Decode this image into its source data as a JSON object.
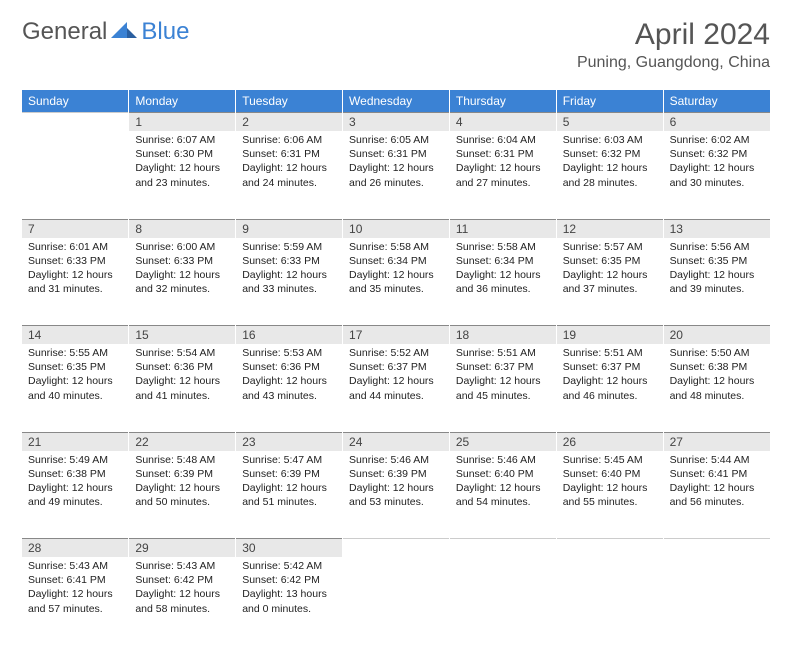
{
  "brand": {
    "part1": "General",
    "part2": "Blue"
  },
  "title": "April 2024",
  "location": "Puning, Guangdong, China",
  "colors": {
    "header_bg": "#3b82d4",
    "header_text": "#ffffff",
    "daynum_bg": "#e8e8e8",
    "daynum_border": "#888888",
    "body_text": "#222222",
    "title_text": "#555555"
  },
  "weekdays": [
    "Sunday",
    "Monday",
    "Tuesday",
    "Wednesday",
    "Thursday",
    "Friday",
    "Saturday"
  ],
  "weeks": [
    {
      "nums": [
        "",
        "1",
        "2",
        "3",
        "4",
        "5",
        "6"
      ],
      "cells": [
        null,
        {
          "sunrise": "Sunrise: 6:07 AM",
          "sunset": "Sunset: 6:30 PM",
          "day1": "Daylight: 12 hours",
          "day2": "and 23 minutes."
        },
        {
          "sunrise": "Sunrise: 6:06 AM",
          "sunset": "Sunset: 6:31 PM",
          "day1": "Daylight: 12 hours",
          "day2": "and 24 minutes."
        },
        {
          "sunrise": "Sunrise: 6:05 AM",
          "sunset": "Sunset: 6:31 PM",
          "day1": "Daylight: 12 hours",
          "day2": "and 26 minutes."
        },
        {
          "sunrise": "Sunrise: 6:04 AM",
          "sunset": "Sunset: 6:31 PM",
          "day1": "Daylight: 12 hours",
          "day2": "and 27 minutes."
        },
        {
          "sunrise": "Sunrise: 6:03 AM",
          "sunset": "Sunset: 6:32 PM",
          "day1": "Daylight: 12 hours",
          "day2": "and 28 minutes."
        },
        {
          "sunrise": "Sunrise: 6:02 AM",
          "sunset": "Sunset: 6:32 PM",
          "day1": "Daylight: 12 hours",
          "day2": "and 30 minutes."
        }
      ]
    },
    {
      "nums": [
        "7",
        "8",
        "9",
        "10",
        "11",
        "12",
        "13"
      ],
      "cells": [
        {
          "sunrise": "Sunrise: 6:01 AM",
          "sunset": "Sunset: 6:33 PM",
          "day1": "Daylight: 12 hours",
          "day2": "and 31 minutes."
        },
        {
          "sunrise": "Sunrise: 6:00 AM",
          "sunset": "Sunset: 6:33 PM",
          "day1": "Daylight: 12 hours",
          "day2": "and 32 minutes."
        },
        {
          "sunrise": "Sunrise: 5:59 AM",
          "sunset": "Sunset: 6:33 PM",
          "day1": "Daylight: 12 hours",
          "day2": "and 33 minutes."
        },
        {
          "sunrise": "Sunrise: 5:58 AM",
          "sunset": "Sunset: 6:34 PM",
          "day1": "Daylight: 12 hours",
          "day2": "and 35 minutes."
        },
        {
          "sunrise": "Sunrise: 5:58 AM",
          "sunset": "Sunset: 6:34 PM",
          "day1": "Daylight: 12 hours",
          "day2": "and 36 minutes."
        },
        {
          "sunrise": "Sunrise: 5:57 AM",
          "sunset": "Sunset: 6:35 PM",
          "day1": "Daylight: 12 hours",
          "day2": "and 37 minutes."
        },
        {
          "sunrise": "Sunrise: 5:56 AM",
          "sunset": "Sunset: 6:35 PM",
          "day1": "Daylight: 12 hours",
          "day2": "and 39 minutes."
        }
      ]
    },
    {
      "nums": [
        "14",
        "15",
        "16",
        "17",
        "18",
        "19",
        "20"
      ],
      "cells": [
        {
          "sunrise": "Sunrise: 5:55 AM",
          "sunset": "Sunset: 6:35 PM",
          "day1": "Daylight: 12 hours",
          "day2": "and 40 minutes."
        },
        {
          "sunrise": "Sunrise: 5:54 AM",
          "sunset": "Sunset: 6:36 PM",
          "day1": "Daylight: 12 hours",
          "day2": "and 41 minutes."
        },
        {
          "sunrise": "Sunrise: 5:53 AM",
          "sunset": "Sunset: 6:36 PM",
          "day1": "Daylight: 12 hours",
          "day2": "and 43 minutes."
        },
        {
          "sunrise": "Sunrise: 5:52 AM",
          "sunset": "Sunset: 6:37 PM",
          "day1": "Daylight: 12 hours",
          "day2": "and 44 minutes."
        },
        {
          "sunrise": "Sunrise: 5:51 AM",
          "sunset": "Sunset: 6:37 PM",
          "day1": "Daylight: 12 hours",
          "day2": "and 45 minutes."
        },
        {
          "sunrise": "Sunrise: 5:51 AM",
          "sunset": "Sunset: 6:37 PM",
          "day1": "Daylight: 12 hours",
          "day2": "and 46 minutes."
        },
        {
          "sunrise": "Sunrise: 5:50 AM",
          "sunset": "Sunset: 6:38 PM",
          "day1": "Daylight: 12 hours",
          "day2": "and 48 minutes."
        }
      ]
    },
    {
      "nums": [
        "21",
        "22",
        "23",
        "24",
        "25",
        "26",
        "27"
      ],
      "cells": [
        {
          "sunrise": "Sunrise: 5:49 AM",
          "sunset": "Sunset: 6:38 PM",
          "day1": "Daylight: 12 hours",
          "day2": "and 49 minutes."
        },
        {
          "sunrise": "Sunrise: 5:48 AM",
          "sunset": "Sunset: 6:39 PM",
          "day1": "Daylight: 12 hours",
          "day2": "and 50 minutes."
        },
        {
          "sunrise": "Sunrise: 5:47 AM",
          "sunset": "Sunset: 6:39 PM",
          "day1": "Daylight: 12 hours",
          "day2": "and 51 minutes."
        },
        {
          "sunrise": "Sunrise: 5:46 AM",
          "sunset": "Sunset: 6:39 PM",
          "day1": "Daylight: 12 hours",
          "day2": "and 53 minutes."
        },
        {
          "sunrise": "Sunrise: 5:46 AM",
          "sunset": "Sunset: 6:40 PM",
          "day1": "Daylight: 12 hours",
          "day2": "and 54 minutes."
        },
        {
          "sunrise": "Sunrise: 5:45 AM",
          "sunset": "Sunset: 6:40 PM",
          "day1": "Daylight: 12 hours",
          "day2": "and 55 minutes."
        },
        {
          "sunrise": "Sunrise: 5:44 AM",
          "sunset": "Sunset: 6:41 PM",
          "day1": "Daylight: 12 hours",
          "day2": "and 56 minutes."
        }
      ]
    },
    {
      "nums": [
        "28",
        "29",
        "30",
        "",
        "",
        "",
        ""
      ],
      "cells": [
        {
          "sunrise": "Sunrise: 5:43 AM",
          "sunset": "Sunset: 6:41 PM",
          "day1": "Daylight: 12 hours",
          "day2": "and 57 minutes."
        },
        {
          "sunrise": "Sunrise: 5:43 AM",
          "sunset": "Sunset: 6:42 PM",
          "day1": "Daylight: 12 hours",
          "day2": "and 58 minutes."
        },
        {
          "sunrise": "Sunrise: 5:42 AM",
          "sunset": "Sunset: 6:42 PM",
          "day1": "Daylight: 13 hours",
          "day2": "and 0 minutes."
        },
        null,
        null,
        null,
        null
      ]
    }
  ]
}
